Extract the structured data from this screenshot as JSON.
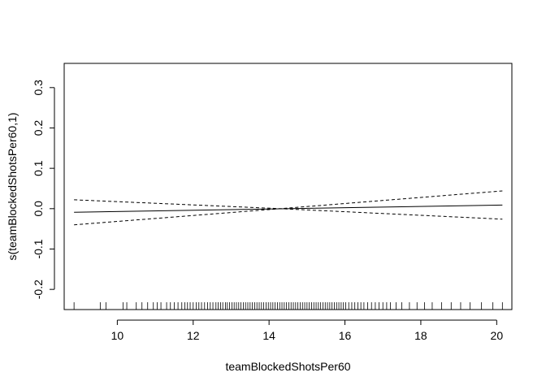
{
  "chart_data": {
    "type": "line",
    "title": "",
    "xlabel": "teamBlockedShotsPer60",
    "ylabel": "s(teamBlockedShotsPer60,1)",
    "xlim": [
      8.6,
      20.4
    ],
    "ylim": [
      -0.25,
      0.36
    ],
    "x_ticks": [
      10,
      12,
      14,
      16,
      18,
      20
    ],
    "y_ticks": [
      -0.2,
      -0.1,
      0.0,
      0.1,
      0.2,
      0.3
    ],
    "x_tick_labels": [
      "10",
      "12",
      "14",
      "16",
      "18",
      "20"
    ],
    "y_tick_labels": [
      "-0.2",
      "-0.1",
      "0.0",
      "0.1",
      "0.2",
      "0.3"
    ],
    "grid": false,
    "series": [
      {
        "line_style": "solid",
        "x": [
          8.86,
          20.15
        ],
        "y": [
          -0.009,
          0.009
        ]
      },
      {
        "line_style": "dashed",
        "x": [
          8.86,
          14.3,
          20.15
        ],
        "y": [
          -0.04,
          0.0,
          0.044
        ]
      },
      {
        "line_style": "dashed",
        "x": [
          8.86,
          14.3,
          20.15
        ],
        "y": [
          0.022,
          0.0,
          -0.026
        ]
      }
    ],
    "rug_x": [
      8.86,
      9.55,
      9.7,
      10.15,
      10.25,
      10.5,
      10.65,
      10.8,
      10.95,
      11.05,
      11.15,
      11.3,
      11.4,
      11.5,
      11.6,
      11.7,
      11.78,
      11.85,
      11.92,
      12.0,
      12.08,
      12.15,
      12.22,
      12.3,
      12.38,
      12.45,
      12.52,
      12.6,
      12.66,
      12.72,
      12.78,
      12.85,
      12.9,
      12.96,
      13.02,
      13.08,
      13.14,
      13.2,
      13.26,
      13.32,
      13.38,
      13.44,
      13.5,
      13.56,
      13.62,
      13.68,
      13.74,
      13.8,
      13.86,
      13.92,
      13.98,
      14.04,
      14.1,
      14.16,
      14.22,
      14.28,
      14.34,
      14.4,
      14.46,
      14.52,
      14.58,
      14.64,
      14.7,
      14.76,
      14.82,
      14.88,
      14.94,
      15.0,
      15.06,
      15.12,
      15.18,
      15.24,
      15.3,
      15.36,
      15.42,
      15.48,
      15.54,
      15.6,
      15.66,
      15.72,
      15.78,
      15.84,
      15.9,
      15.96,
      16.02,
      16.1,
      16.18,
      16.26,
      16.34,
      16.42,
      16.5,
      16.6,
      16.7,
      16.8,
      16.9,
      17.0,
      17.1,
      17.2,
      17.35,
      17.5,
      17.7,
      17.9,
      18.1,
      18.3,
      18.55,
      18.8,
      19.05,
      19.3,
      19.6,
      19.9,
      20.15
    ]
  }
}
